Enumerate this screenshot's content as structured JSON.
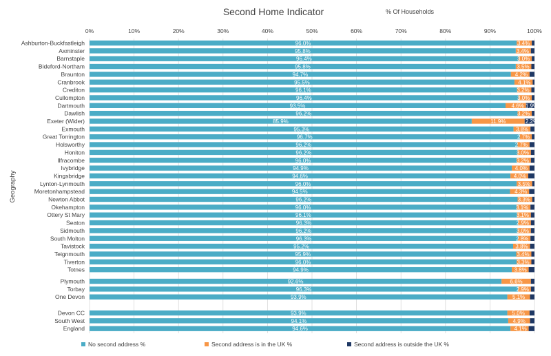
{
  "chart_data": {
    "type": "bar",
    "orientation": "horizontal",
    "stacked": true,
    "title": "Second Home Indicator",
    "subtitle": "% Of Households",
    "xlabel": "",
    "ylabel": "Geography",
    "xlim": [
      0,
      100
    ],
    "x_ticks": [
      "0%",
      "10%",
      "20%",
      "30%",
      "40%",
      "50%",
      "60%",
      "70%",
      "80%",
      "90%",
      "100%"
    ],
    "grid": true,
    "legend_position": "bottom",
    "groups": [
      [
        "Ashburton-Buckfastleigh",
        "Axminster",
        "Barnstaple",
        "Bideford-Northam",
        "Braunton",
        "Cranbrook",
        "Crediton",
        "Cullompton",
        "Dartmouth",
        "Dawlish",
        "Exeter (Wider)",
        "Exmouth",
        "Great Torrington",
        "Holsworthy",
        "Honiton",
        "Ilfracombe",
        "Ivybridge",
        "Kingsbridge",
        "Lynton-Lynmouth",
        "Moretonhampstead",
        "Newton Abbot",
        "Okehampton",
        "Ottery St Mary",
        "Seaton",
        "Sidmouth",
        "South Molton",
        "Tavistock",
        "Teignmouth",
        "Tiverton",
        "Totnes"
      ],
      [
        "Plymouth",
        "Torbay",
        "One Devon"
      ],
      [
        "Devon CC",
        "South West",
        "England"
      ]
    ],
    "categories": [
      "Ashburton-Buckfastleigh",
      "Axminster",
      "Barnstaple",
      "Bideford-Northam",
      "Braunton",
      "Cranbrook",
      "Crediton",
      "Cullompton",
      "Dartmouth",
      "Dawlish",
      "Exeter (Wider)",
      "Exmouth",
      "Great Torrington",
      "Holsworthy",
      "Honiton",
      "Ilfracombe",
      "Ivybridge",
      "Kingsbridge",
      "Lynton-Lynmouth",
      "Moretonhampstead",
      "Newton Abbot",
      "Okehampton",
      "Ottery St Mary",
      "Seaton",
      "Sidmouth",
      "South Molton",
      "Tavistock",
      "Teignmouth",
      "Tiverton",
      "Totnes",
      "Plymouth",
      "Torbay",
      "One Devon",
      "Devon CC",
      "South West",
      "England"
    ],
    "series": [
      {
        "name": "No second address %",
        "color": "#4bacc6",
        "values": [
          96.0,
          95.8,
          96.4,
          95.8,
          94.7,
          95.5,
          96.1,
          96.4,
          93.5,
          96.2,
          85.9,
          95.3,
          96.7,
          96.2,
          96.2,
          96.0,
          94.9,
          94.6,
          96.0,
          94.5,
          96.2,
          96.0,
          96.1,
          96.3,
          96.2,
          96.3,
          95.2,
          95.9,
          96.0,
          94.9,
          92.6,
          96.3,
          93.9,
          93.9,
          94.1,
          94.6
        ],
        "labels": [
          "96.0%",
          "95.8%",
          "96.4%",
          "95.8%",
          "94.7%",
          "95.5%",
          "96.1%",
          "96.4%",
          "93.5%",
          "96.2%",
          "85.9%",
          "95.3%",
          "96.7%",
          "96.2%",
          "96.2%",
          "96.0%",
          "94.9%",
          "94.6%",
          "96.0%",
          "94.5%",
          "96.2%",
          "96.0%",
          "96.1%",
          "96.3%",
          "96.2%",
          "96.3%",
          "95.2%",
          "95.9%",
          "96.0%",
          "94.9%",
          "92.6%",
          "96.3%",
          "93.9%",
          "93.9%",
          "94.1%",
          "94.6%"
        ]
      },
      {
        "name": "Second address is in the UK %",
        "color": "#f79646",
        "values": [
          3.4,
          3.4,
          3.0,
          3.5,
          4.2,
          4.1,
          3.2,
          3.0,
          4.6,
          3.2,
          11.9,
          3.8,
          2.7,
          2.7,
          3.0,
          3.2,
          4.0,
          4.0,
          3.5,
          4.3,
          3.3,
          3.1,
          3.1,
          2.9,
          3.0,
          2.8,
          3.8,
          3.4,
          3.3,
          3.8,
          6.6,
          2.9,
          5.1,
          5.0,
          4.9,
          4.1
        ],
        "labels": [
          "3.4%",
          "3.4%",
          "3.0%",
          "3.5%",
          "4.2%",
          "4.1%",
          "3.2%",
          "3.0%",
          "4.6%",
          "3.2%",
          "11.9%",
          "3.8%",
          "2.7%",
          "2.7%",
          "3.0%",
          "3.2%",
          "4.0%",
          "4.0%",
          "3.5%",
          "4.3%",
          "3.3%",
          "3.1%",
          "3.1%",
          "2.9%",
          "3.0%",
          "2.8%",
          "3.8%",
          "3.4%",
          "3.3%",
          "3.8%",
          "6.6%",
          "2.9%",
          "5.1%",
          "5.0%",
          "4.9%",
          "4.1%"
        ]
      },
      {
        "name": "Second address is outside the UK %",
        "color": "#1f3864",
        "values": [
          0.6,
          0.8,
          0.6,
          0.7,
          1.1,
          0.4,
          0.7,
          0.6,
          1.9,
          0.6,
          2.2,
          0.9,
          0.6,
          1.1,
          0.8,
          0.8,
          1.1,
          1.4,
          0.5,
          1.2,
          0.5,
          0.9,
          0.8,
          0.8,
          0.8,
          0.9,
          1.0,
          0.7,
          0.7,
          1.3,
          0.8,
          0.8,
          1.0,
          1.1,
          1.0,
          1.3
        ],
        "labels": [
          "",
          "",
          "",
          "",
          "",
          "",
          "",
          "",
          "1.9%",
          "",
          "2.2%",
          "",
          "",
          "",
          "",
          "",
          "",
          "",
          "",
          "",
          "",
          "",
          "",
          "",
          "",
          "",
          "",
          "",
          "",
          "",
          "",
          "",
          "",
          "",
          "",
          ""
        ]
      }
    ]
  }
}
